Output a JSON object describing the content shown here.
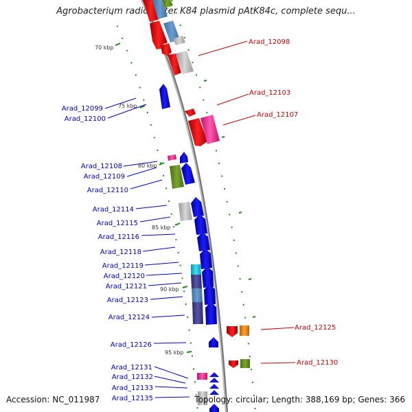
{
  "title": "Agrobacterium radiobacter K84 plasmid pAtK84c, complete sequ...",
  "footer": {
    "accession": "Accession: NC_011987",
    "summary": "Topology: circular; Length: 388,169 bp; Genes: 366"
  },
  "colors": {
    "forward_label": "#0000cc",
    "reverse_label": "#cc0000",
    "backbone": "#888888",
    "tick": "#1e8a1e"
  },
  "scale_ticks": [
    "70 kbp",
    "75 kbp",
    "80 kbp",
    "85 kbp",
    "90 kbp",
    "95 kbp"
  ],
  "gene_labels": {
    "reverse": [
      "Arad_12098",
      "Arad_12103",
      "Arad_12107",
      "Arad_12125",
      "Arad_12130"
    ],
    "forward": [
      "Arad_12099",
      "Arad_12100",
      "Arad_12108",
      "Arad_12109",
      "Arad_12110",
      "Arad_12114",
      "Arad_12115",
      "Arad_12116",
      "Arad_12118",
      "Arad_12119",
      "Arad_12120",
      "Arad_12121",
      "Arad_12123",
      "Arad_12124",
      "Arad_12126",
      "Arad_12131",
      "Arad_12132",
      "Arad_12133",
      "Arad_12135"
    ]
  }
}
